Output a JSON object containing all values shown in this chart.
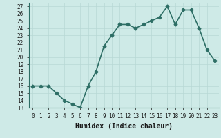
{
  "x": [
    0,
    1,
    2,
    3,
    4,
    5,
    6,
    7,
    8,
    9,
    10,
    11,
    12,
    13,
    14,
    15,
    16,
    17,
    18,
    19,
    20,
    21,
    22,
    23
  ],
  "y": [
    16,
    16,
    16,
    15,
    14,
    13.5,
    13,
    16,
    18,
    21.5,
    23,
    24.5,
    24.5,
    24,
    24.5,
    25,
    25.5,
    27,
    24.5,
    26.5,
    26.5,
    24,
    21,
    19.5
  ],
  "xlabel": "Humidex (Indice chaleur)",
  "xlim": [
    -0.5,
    23.5
  ],
  "ylim": [
    13,
    27.5
  ],
  "yticks": [
    13,
    14,
    15,
    16,
    17,
    18,
    19,
    20,
    21,
    22,
    23,
    24,
    25,
    26,
    27
  ],
  "xticks": [
    0,
    1,
    2,
    3,
    4,
    5,
    6,
    7,
    8,
    9,
    10,
    11,
    12,
    13,
    14,
    15,
    16,
    17,
    18,
    19,
    20,
    21,
    22,
    23
  ],
  "line_color": "#2d6e65",
  "marker": "D",
  "marker_size": 2.5,
  "bg_color": "#ceeae7",
  "grid_color": "#b8d8d5",
  "tick_fontsize": 5.5,
  "xlabel_fontsize": 7.0,
  "line_width": 1.2
}
